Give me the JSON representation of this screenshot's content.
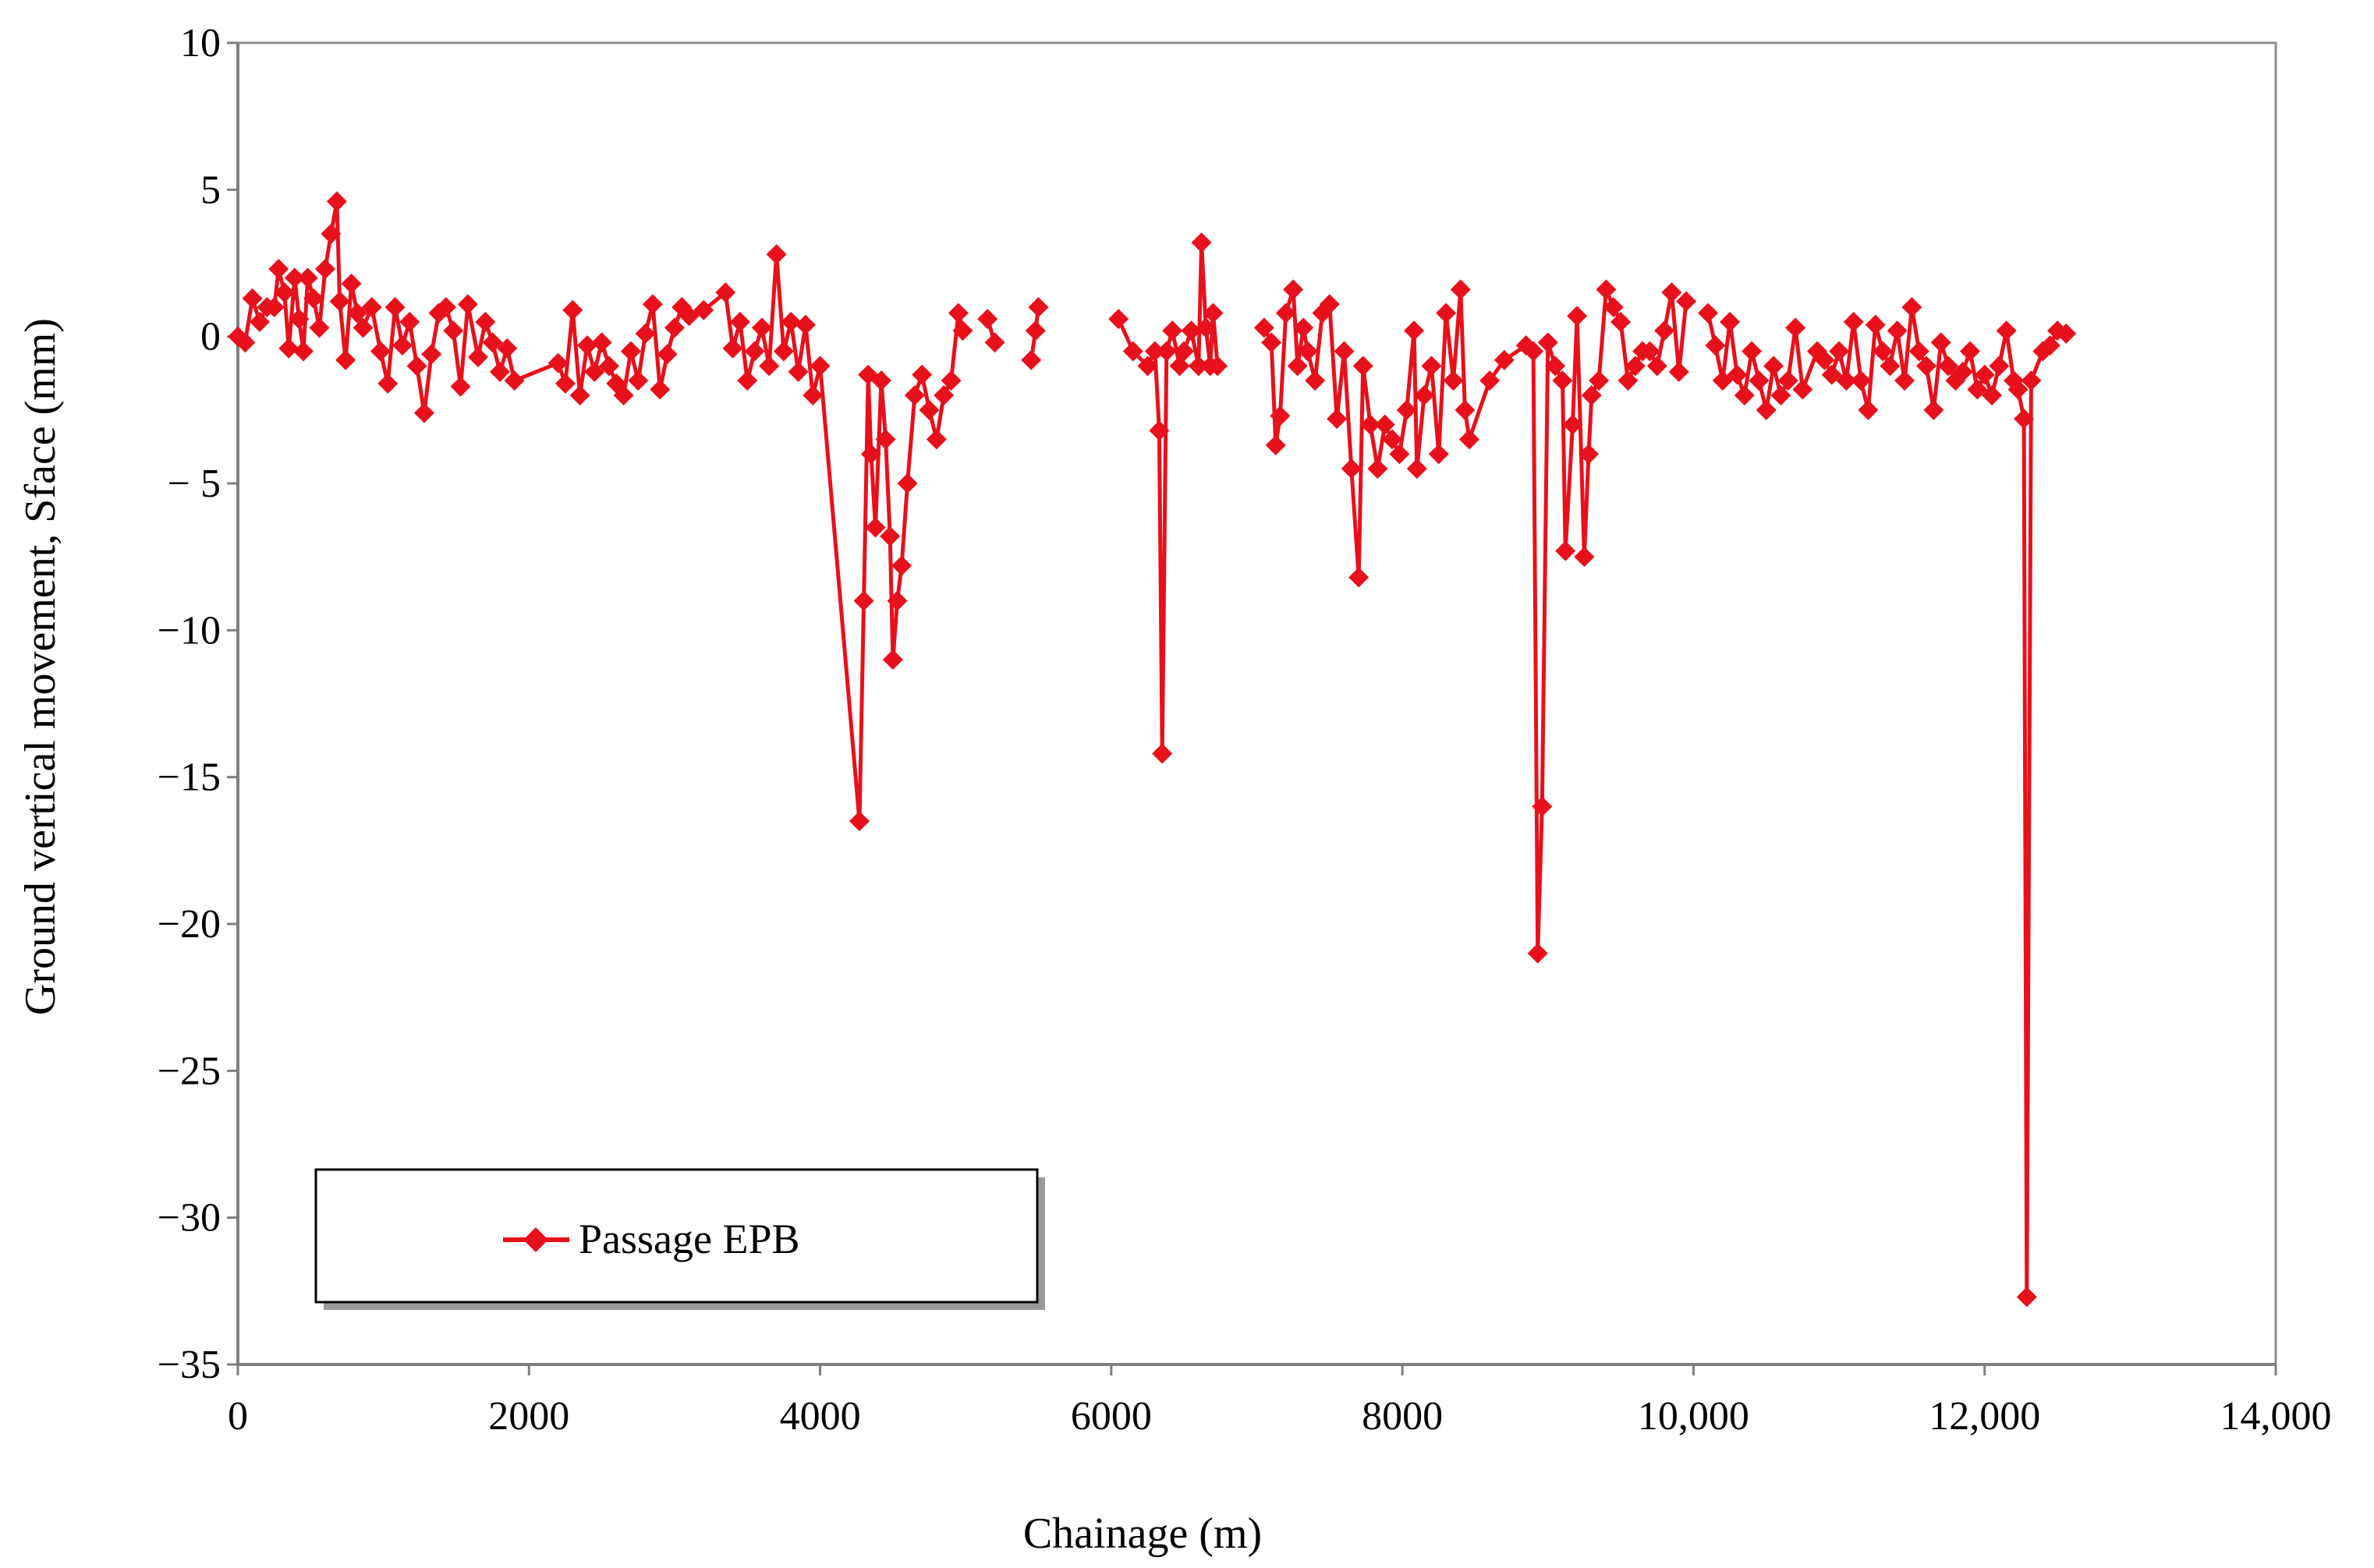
{
  "chart_data": {
    "type": "line",
    "title": "",
    "xlabel": "Chainage (m)",
    "ylabel": "Ground vertical movement, Sface (mm)",
    "xlim": [
      0,
      14000
    ],
    "ylim": [
      -35,
      10
    ],
    "x_ticks": [
      0,
      2000,
      4000,
      6000,
      8000,
      10000,
      12000,
      14000
    ],
    "x_tick_labels": [
      "0",
      "2000",
      "4000",
      "6000",
      "8000",
      "10,000",
      "12,000",
      "14,000"
    ],
    "y_ticks": [
      10,
      5,
      0,
      -5,
      -10,
      -15,
      -20,
      -25,
      -30,
      -35
    ],
    "y_tick_labels": [
      "10",
      "5",
      "0",
      "− 5",
      "−10",
      "−15",
      "−20",
      "−25",
      "−30",
      "−35"
    ],
    "grid": false,
    "legend_position": "bottom-left",
    "series": [
      {
        "name": "Passage EPB",
        "color": "#e8101b",
        "marker": "diamond",
        "segments": [
          [
            [
              0,
              0
            ],
            [
              50,
              -0.2
            ],
            [
              100,
              1.3
            ],
            [
              150,
              0.5
            ],
            [
              200,
              1.0
            ],
            [
              250,
              1.0
            ],
            [
              280,
              2.3
            ],
            [
              320,
              1.5
            ],
            [
              350,
              -0.4
            ],
            [
              390,
              2.0
            ],
            [
              420,
              0.6
            ],
            [
              450,
              -0.5
            ],
            [
              480,
              2.0
            ],
            [
              520,
              1.3
            ],
            [
              560,
              0.3
            ],
            [
              600,
              2.3
            ],
            [
              640,
              3.5
            ],
            [
              680,
              4.6
            ],
            [
              700,
              1.2
            ],
            [
              740,
              -0.8
            ],
            [
              780,
              1.8
            ],
            [
              820,
              0.8
            ],
            [
              860,
              0.3
            ],
            [
              920,
              1.0
            ],
            [
              980,
              -0.5
            ],
            [
              1030,
              -1.6
            ],
            [
              1080,
              1.0
            ],
            [
              1130,
              -0.3
            ],
            [
              1180,
              0.5
            ],
            [
              1230,
              -1.0
            ],
            [
              1280,
              -2.6
            ],
            [
              1330,
              -0.6
            ],
            [
              1380,
              0.8
            ],
            [
              1430,
              1.0
            ],
            [
              1480,
              0.2
            ],
            [
              1530,
              -1.7
            ],
            [
              1580,
              1.1
            ],
            [
              1650,
              -0.7
            ],
            [
              1700,
              0.5
            ],
            [
              1750,
              -0.2
            ],
            [
              1800,
              -1.2
            ],
            [
              1850,
              -0.4
            ],
            [
              1900,
              -1.5
            ],
            [
              2200,
              -0.9
            ],
            [
              2250,
              -1.6
            ],
            [
              2300,
              0.9
            ],
            [
              2350,
              -2.0
            ],
            [
              2400,
              -0.3
            ],
            [
              2450,
              -1.2
            ],
            [
              2500,
              -0.2
            ],
            [
              2550,
              -1.0
            ],
            [
              2600,
              -1.6
            ],
            [
              2650,
              -2.0
            ],
            [
              2700,
              -0.5
            ],
            [
              2750,
              -1.5
            ],
            [
              2800,
              0.1
            ],
            [
              2850,
              1.1
            ],
            [
              2900,
              -1.8
            ],
            [
              2950,
              -0.6
            ],
            [
              3000,
              0.3
            ],
            [
              3050,
              1.0
            ],
            [
              3100,
              0.7
            ],
            [
              3200,
              0.9
            ],
            [
              3350,
              1.5
            ],
            [
              3400,
              -0.4
            ],
            [
              3450,
              0.5
            ],
            [
              3500,
              -1.5
            ],
            [
              3550,
              -0.5
            ],
            [
              3600,
              0.3
            ],
            [
              3650,
              -1.0
            ],
            [
              3700,
              2.8
            ],
            [
              3750,
              -0.5
            ],
            [
              3800,
              0.5
            ],
            [
              3850,
              -1.2
            ],
            [
              3900,
              0.4
            ],
            [
              3950,
              -2.0
            ],
            [
              4000,
              -1.0
            ],
            [
              4270,
              -16.5
            ],
            [
              4300,
              -9.0
            ],
            [
              4330,
              -1.3
            ],
            [
              4350,
              -4.0
            ],
            [
              4380,
              -6.5
            ],
            [
              4420,
              -1.5
            ],
            [
              4450,
              -3.5
            ],
            [
              4480,
              -6.8
            ],
            [
              4500,
              -11.0
            ],
            [
              4530,
              -9.0
            ],
            [
              4560,
              -7.8
            ],
            [
              4600,
              -5.0
            ],
            [
              4650,
              -2.0
            ],
            [
              4700,
              -1.3
            ],
            [
              4750,
              -2.5
            ],
            [
              4800,
              -3.5
            ],
            [
              4850,
              -2.0
            ],
            [
              4900,
              -1.5
            ],
            [
              4950,
              0.8
            ],
            [
              4980,
              0.2
            ]
          ],
          [
            [
              5150,
              0.6
            ],
            [
              5200,
              -0.2
            ]
          ],
          [
            [
              5450,
              -0.8
            ],
            [
              5480,
              0.2
            ],
            [
              5500,
              1.0
            ]
          ],
          [
            [
              6050,
              0.6
            ],
            [
              6150,
              -0.5
            ],
            [
              6250,
              -1.0
            ],
            [
              6300,
              -0.5
            ],
            [
              6330,
              -3.2
            ],
            [
              6350,
              -14.2
            ],
            [
              6380,
              -0.5
            ],
            [
              6420,
              0.2
            ],
            [
              6470,
              -1.0
            ],
            [
              6500,
              -0.5
            ],
            [
              6550,
              0.2
            ],
            [
              6600,
              -1.0
            ],
            [
              6620,
              3.2
            ],
            [
              6650,
              0.3
            ],
            [
              6680,
              -1.0
            ],
            [
              6700,
              0.8
            ],
            [
              6730,
              -1.0
            ]
          ],
          [
            [
              7050,
              0.3
            ],
            [
              7100,
              -0.2
            ],
            [
              7130,
              -3.7
            ],
            [
              7160,
              -2.7
            ],
            [
              7200,
              0.8
            ],
            [
              7250,
              1.6
            ],
            [
              7280,
              -1.0
            ],
            [
              7320,
              0.3
            ],
            [
              7350,
              -0.5
            ],
            [
              7400,
              -1.5
            ],
            [
              7450,
              0.8
            ],
            [
              7500,
              1.1
            ],
            [
              7550,
              -2.8
            ],
            [
              7600,
              -0.5
            ],
            [
              7650,
              -4.5
            ],
            [
              7700,
              -8.2
            ],
            [
              7730,
              -1.0
            ],
            [
              7780,
              -3.0
            ],
            [
              7830,
              -4.5
            ],
            [
              7880,
              -3.0
            ],
            [
              7930,
              -3.5
            ],
            [
              7980,
              -4.0
            ],
            [
              8030,
              -2.5
            ],
            [
              8080,
              0.2
            ],
            [
              8100,
              -4.5
            ],
            [
              8150,
              -2.0
            ],
            [
              8200,
              -1.0
            ],
            [
              8250,
              -4.0
            ],
            [
              8300,
              0.8
            ],
            [
              8350,
              -1.5
            ],
            [
              8400,
              1.6
            ],
            [
              8430,
              -2.5
            ],
            [
              8460,
              -3.5
            ],
            [
              8600,
              -1.5
            ],
            [
              8700,
              -0.8
            ],
            [
              8850,
              -0.3
            ],
            [
              8900,
              -0.5
            ],
            [
              8930,
              -21.0
            ],
            [
              8960,
              -16.0
            ],
            [
              9000,
              -0.2
            ],
            [
              9050,
              -1.0
            ],
            [
              9100,
              -1.5
            ],
            [
              9120,
              -7.3
            ],
            [
              9170,
              -3.0
            ],
            [
              9200,
              0.7
            ],
            [
              9250,
              -7.5
            ],
            [
              9280,
              -4.0
            ],
            [
              9300,
              -2.0
            ],
            [
              9350,
              -1.5
            ],
            [
              9400,
              1.6
            ],
            [
              9450,
              1.0
            ],
            [
              9500,
              0.5
            ],
            [
              9550,
              -1.5
            ],
            [
              9600,
              -1.0
            ],
            [
              9650,
              -0.5
            ],
            [
              9700,
              -0.5
            ],
            [
              9750,
              -1.0
            ],
            [
              9800,
              0.2
            ],
            [
              9850,
              1.5
            ],
            [
              9900,
              -1.2
            ],
            [
              9950,
              1.2
            ]
          ],
          [
            [
              10100,
              0.8
            ],
            [
              10150,
              -0.3
            ],
            [
              10200,
              -1.5
            ],
            [
              10250,
              0.5
            ],
            [
              10300,
              -1.3
            ],
            [
              10350,
              -2.0
            ],
            [
              10400,
              -0.5
            ],
            [
              10450,
              -1.5
            ],
            [
              10500,
              -2.5
            ],
            [
              10550,
              -1.0
            ],
            [
              10600,
              -2.0
            ],
            [
              10650,
              -1.5
            ],
            [
              10700,
              0.3
            ],
            [
              10750,
              -1.8
            ],
            [
              10850,
              -0.5
            ],
            [
              10900,
              -0.8
            ],
            [
              10950,
              -1.3
            ],
            [
              11000,
              -0.5
            ],
            [
              11050,
              -1.5
            ],
            [
              11100,
              0.5
            ],
            [
              11150,
              -1.5
            ],
            [
              11200,
              -2.5
            ],
            [
              11250,
              0.4
            ],
            [
              11300,
              -0.5
            ],
            [
              11350,
              -1.0
            ],
            [
              11400,
              0.2
            ],
            [
              11450,
              -1.5
            ],
            [
              11500,
              1.0
            ],
            [
              11550,
              -0.5
            ],
            [
              11600,
              -1.0
            ],
            [
              11650,
              -2.5
            ],
            [
              11700,
              -0.2
            ],
            [
              11750,
              -1.0
            ],
            [
              11800,
              -1.5
            ],
            [
              11850,
              -1.2
            ],
            [
              11900,
              -0.5
            ],
            [
              11950,
              -1.8
            ],
            [
              12000,
              -1.3
            ],
            [
              12050,
              -2.0
            ],
            [
              12100,
              -1.0
            ],
            [
              12150,
              0.2
            ],
            [
              12200,
              -1.5
            ],
            [
              12230,
              -1.8
            ],
            [
              12270,
              -2.8
            ],
            [
              12290,
              -32.7
            ],
            [
              12320,
              -1.5
            ],
            [
              12400,
              -0.5
            ],
            [
              12450,
              -0.3
            ],
            [
              12500,
              0.2
            ],
            [
              12560,
              0.1
            ]
          ]
        ]
      }
    ]
  }
}
